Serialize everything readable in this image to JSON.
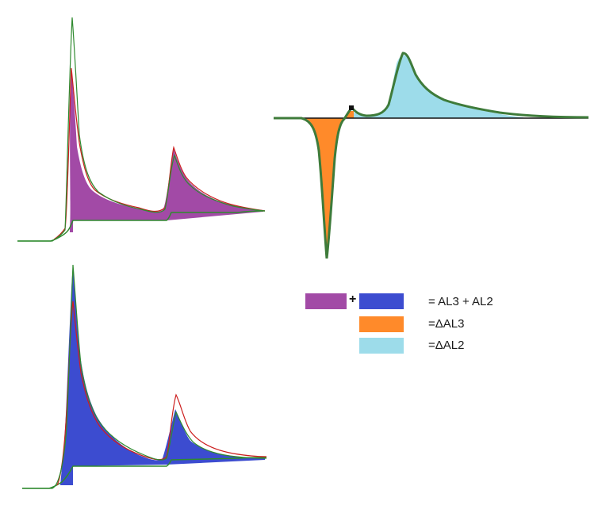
{
  "colors": {
    "purple": "#a24aa6",
    "blue": "#3c4cd0",
    "orange": "#ff8a2a",
    "light_blue": "#9ddcea",
    "green": "#2f8a2f",
    "dark_green": "#3e7b3a",
    "red": "#cc1f1f",
    "axis": "#111111"
  },
  "legend": {
    "plus_sign": "+",
    "sum_label": "= AL3 + AL2",
    "delta_l3_label": "=ΔAL3",
    "delta_l2_label": "=ΔAL2"
  },
  "panels": [
    {
      "name": "top-left XAS spectrum",
      "fill": "purple"
    },
    {
      "name": "bottom-left XAS spectrum",
      "fill": "blue"
    },
    {
      "name": "XMCD difference spectrum",
      "fill": [
        "orange",
        "light_blue"
      ]
    }
  ]
}
